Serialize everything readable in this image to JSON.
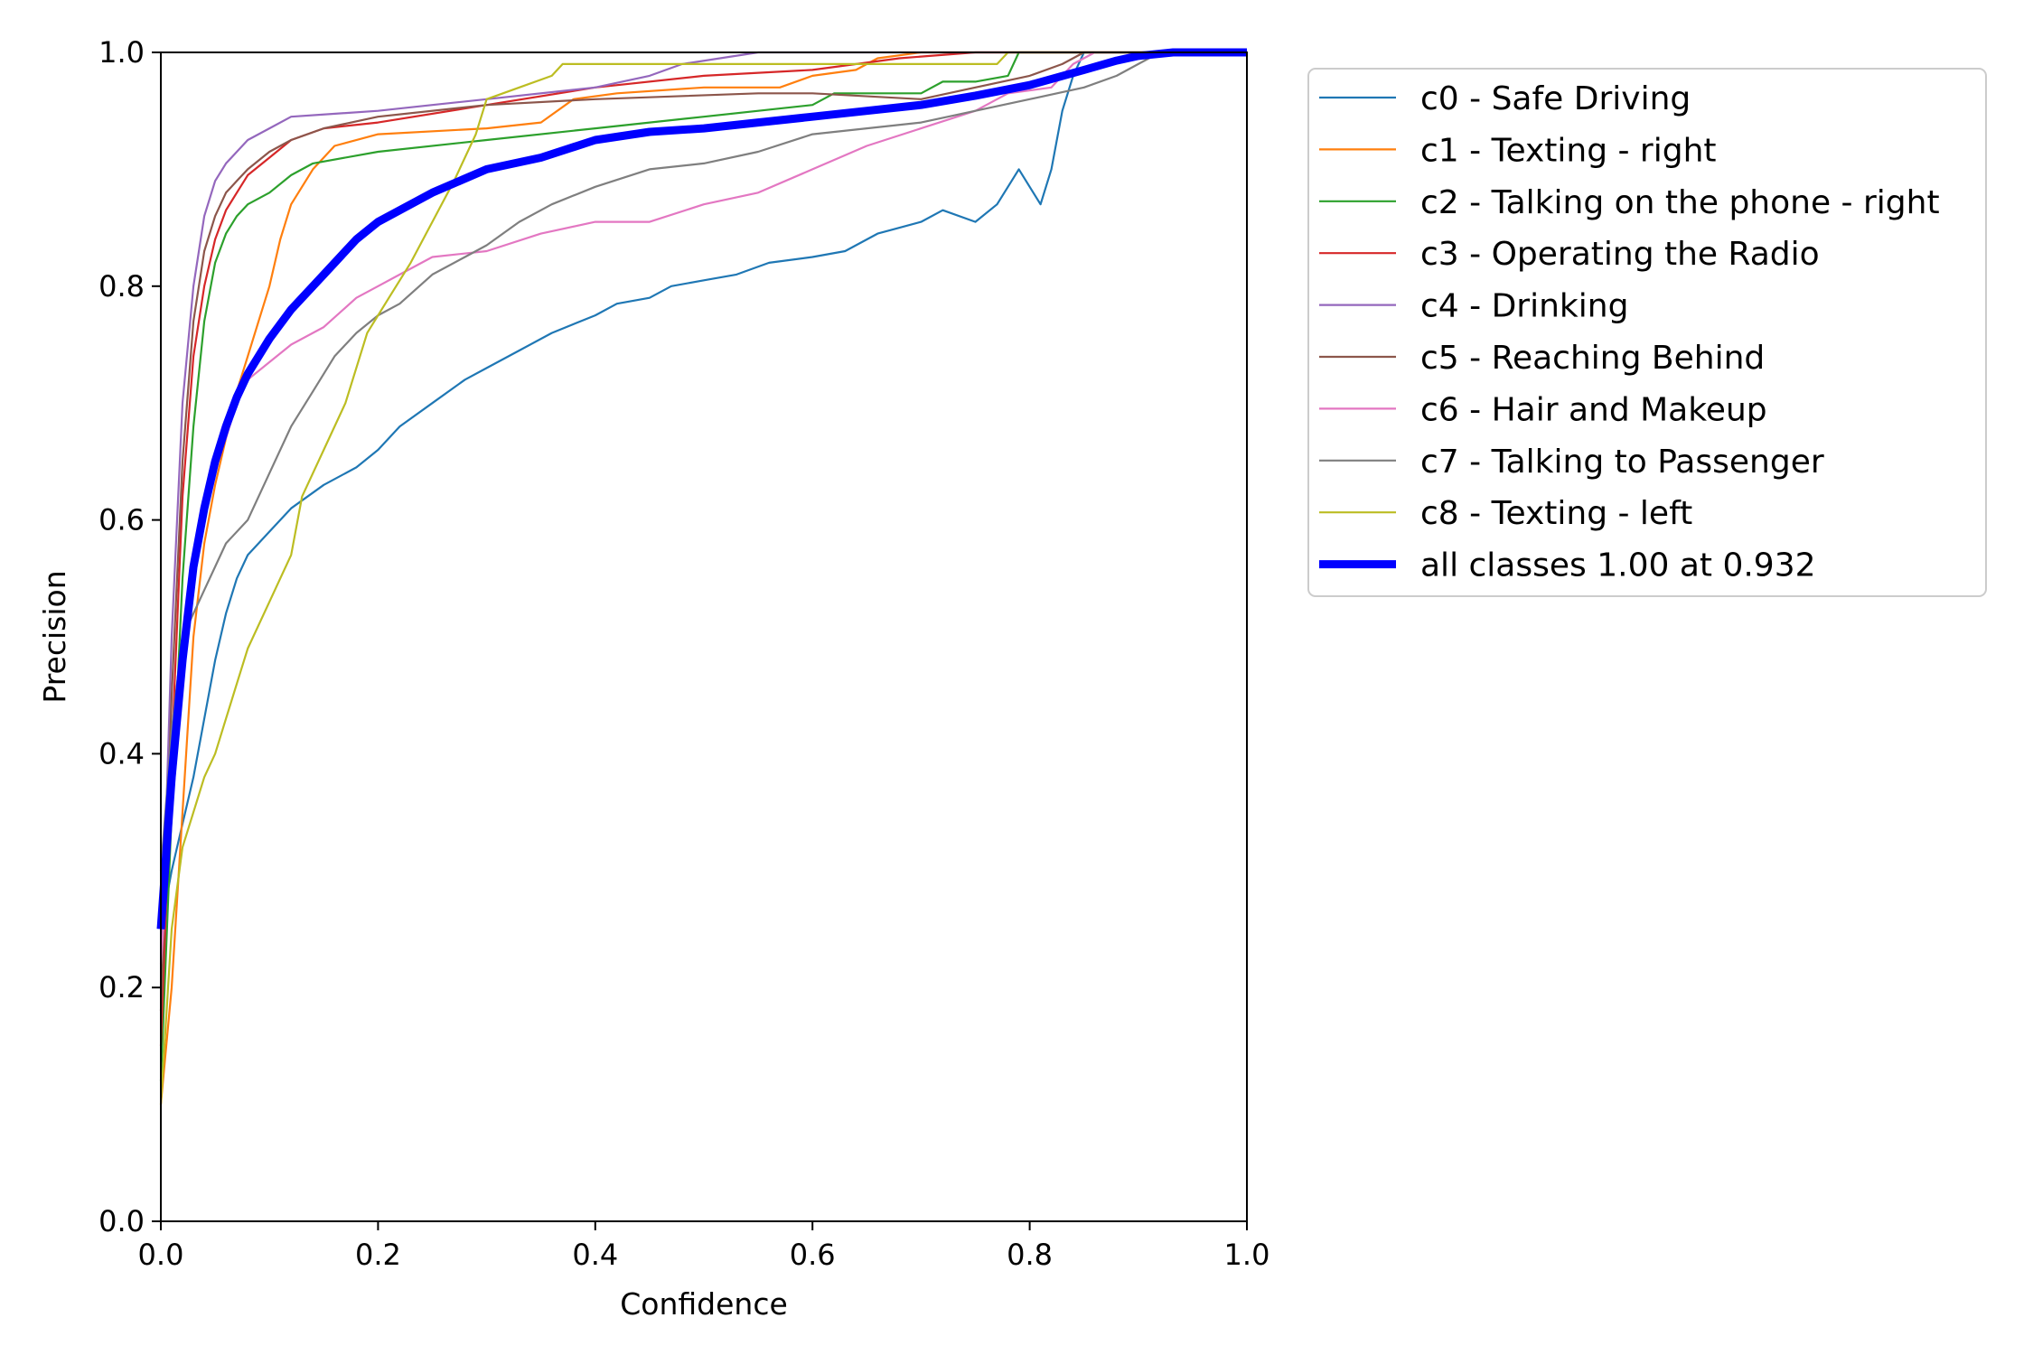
{
  "chart_data": {
    "type": "line",
    "title": "",
    "xlabel": "Confidence",
    "ylabel": "Precision",
    "xlim": [
      0,
      1
    ],
    "ylim": [
      0,
      1
    ],
    "xticks": [
      "0.0",
      "0.2",
      "0.4",
      "0.6",
      "0.8",
      "1.0"
    ],
    "yticks": [
      "0.0",
      "0.2",
      "0.4",
      "0.6",
      "0.8",
      "1.0"
    ],
    "grid": false,
    "legend_position": "outside-right-top",
    "series": [
      {
        "name": "c0 - Safe Driving",
        "color": "#1f77b4",
        "points": [
          [
            0.0,
            0.25
          ],
          [
            0.01,
            0.3
          ],
          [
            0.02,
            0.34
          ],
          [
            0.03,
            0.38
          ],
          [
            0.04,
            0.43
          ],
          [
            0.05,
            0.48
          ],
          [
            0.06,
            0.52
          ],
          [
            0.07,
            0.55
          ],
          [
            0.08,
            0.57
          ],
          [
            0.1,
            0.59
          ],
          [
            0.12,
            0.61
          ],
          [
            0.15,
            0.63
          ],
          [
            0.18,
            0.645
          ],
          [
            0.2,
            0.66
          ],
          [
            0.22,
            0.68
          ],
          [
            0.25,
            0.7
          ],
          [
            0.28,
            0.72
          ],
          [
            0.3,
            0.73
          ],
          [
            0.33,
            0.745
          ],
          [
            0.36,
            0.76
          ],
          [
            0.4,
            0.775
          ],
          [
            0.42,
            0.785
          ],
          [
            0.45,
            0.79
          ],
          [
            0.47,
            0.8
          ],
          [
            0.5,
            0.805
          ],
          [
            0.53,
            0.81
          ],
          [
            0.56,
            0.82
          ],
          [
            0.6,
            0.825
          ],
          [
            0.63,
            0.83
          ],
          [
            0.66,
            0.845
          ],
          [
            0.7,
            0.855
          ],
          [
            0.72,
            0.865
          ],
          [
            0.75,
            0.855
          ],
          [
            0.77,
            0.87
          ],
          [
            0.79,
            0.9
          ],
          [
            0.81,
            0.87
          ],
          [
            0.82,
            0.9
          ],
          [
            0.83,
            0.95
          ],
          [
            0.84,
            0.98
          ],
          [
            0.85,
            1.0
          ],
          [
            1.0,
            1.0
          ]
        ]
      },
      {
        "name": "c1 - Texting - right",
        "color": "#ff7f0e",
        "points": [
          [
            0.0,
            0.1
          ],
          [
            0.01,
            0.2
          ],
          [
            0.02,
            0.35
          ],
          [
            0.03,
            0.5
          ],
          [
            0.04,
            0.58
          ],
          [
            0.05,
            0.63
          ],
          [
            0.06,
            0.67
          ],
          [
            0.07,
            0.71
          ],
          [
            0.08,
            0.74
          ],
          [
            0.09,
            0.77
          ],
          [
            0.1,
            0.8
          ],
          [
            0.11,
            0.84
          ],
          [
            0.12,
            0.87
          ],
          [
            0.14,
            0.9
          ],
          [
            0.16,
            0.92
          ],
          [
            0.2,
            0.93
          ],
          [
            0.3,
            0.935
          ],
          [
            0.35,
            0.94
          ],
          [
            0.38,
            0.96
          ],
          [
            0.42,
            0.965
          ],
          [
            0.5,
            0.97
          ],
          [
            0.57,
            0.97
          ],
          [
            0.6,
            0.98
          ],
          [
            0.64,
            0.985
          ],
          [
            0.66,
            0.995
          ],
          [
            0.7,
            1.0
          ],
          [
            1.0,
            1.0
          ]
        ]
      },
      {
        "name": "c2 - Talking on the phone - right",
        "color": "#2ca02c",
        "points": [
          [
            0.0,
            0.12
          ],
          [
            0.01,
            0.35
          ],
          [
            0.02,
            0.55
          ],
          [
            0.03,
            0.68
          ],
          [
            0.04,
            0.77
          ],
          [
            0.05,
            0.82
          ],
          [
            0.06,
            0.845
          ],
          [
            0.07,
            0.86
          ],
          [
            0.08,
            0.87
          ],
          [
            0.1,
            0.88
          ],
          [
            0.12,
            0.895
          ],
          [
            0.14,
            0.905
          ],
          [
            0.2,
            0.915
          ],
          [
            0.3,
            0.925
          ],
          [
            0.4,
            0.935
          ],
          [
            0.5,
            0.945
          ],
          [
            0.6,
            0.955
          ],
          [
            0.62,
            0.965
          ],
          [
            0.7,
            0.965
          ],
          [
            0.72,
            0.975
          ],
          [
            0.75,
            0.975
          ],
          [
            0.78,
            0.98
          ],
          [
            0.79,
            1.0
          ],
          [
            1.0,
            1.0
          ]
        ]
      },
      {
        "name": "c3 - Operating the Radio",
        "color": "#d62728",
        "points": [
          [
            0.0,
            0.15
          ],
          [
            0.01,
            0.4
          ],
          [
            0.02,
            0.62
          ],
          [
            0.03,
            0.74
          ],
          [
            0.04,
            0.8
          ],
          [
            0.05,
            0.84
          ],
          [
            0.06,
            0.865
          ],
          [
            0.07,
            0.88
          ],
          [
            0.08,
            0.895
          ],
          [
            0.1,
            0.91
          ],
          [
            0.12,
            0.925
          ],
          [
            0.15,
            0.935
          ],
          [
            0.2,
            0.94
          ],
          [
            0.3,
            0.955
          ],
          [
            0.4,
            0.97
          ],
          [
            0.5,
            0.98
          ],
          [
            0.6,
            0.985
          ],
          [
            0.68,
            0.995
          ],
          [
            0.75,
            1.0
          ],
          [
            1.0,
            1.0
          ]
        ]
      },
      {
        "name": "c4 - Drinking",
        "color": "#9467bd",
        "points": [
          [
            0.0,
            0.2
          ],
          [
            0.01,
            0.5
          ],
          [
            0.02,
            0.7
          ],
          [
            0.03,
            0.8
          ],
          [
            0.04,
            0.86
          ],
          [
            0.05,
            0.89
          ],
          [
            0.06,
            0.905
          ],
          [
            0.07,
            0.915
          ],
          [
            0.08,
            0.925
          ],
          [
            0.1,
            0.935
          ],
          [
            0.12,
            0.945
          ],
          [
            0.2,
            0.95
          ],
          [
            0.25,
            0.955
          ],
          [
            0.3,
            0.96
          ],
          [
            0.4,
            0.97
          ],
          [
            0.45,
            0.98
          ],
          [
            0.48,
            0.99
          ],
          [
            0.55,
            1.0
          ],
          [
            1.0,
            1.0
          ]
        ]
      },
      {
        "name": "c5 - Reaching Behind",
        "color": "#8c564b",
        "points": [
          [
            0.0,
            0.18
          ],
          [
            0.01,
            0.45
          ],
          [
            0.02,
            0.65
          ],
          [
            0.03,
            0.77
          ],
          [
            0.04,
            0.83
          ],
          [
            0.05,
            0.86
          ],
          [
            0.06,
            0.88
          ],
          [
            0.07,
            0.89
          ],
          [
            0.08,
            0.9
          ],
          [
            0.1,
            0.915
          ],
          [
            0.12,
            0.925
          ],
          [
            0.15,
            0.935
          ],
          [
            0.2,
            0.945
          ],
          [
            0.3,
            0.955
          ],
          [
            0.4,
            0.96
          ],
          [
            0.55,
            0.965
          ],
          [
            0.6,
            0.965
          ],
          [
            0.7,
            0.96
          ],
          [
            0.75,
            0.97
          ],
          [
            0.8,
            0.98
          ],
          [
            0.83,
            0.99
          ],
          [
            0.85,
            1.0
          ],
          [
            1.0,
            1.0
          ]
        ]
      },
      {
        "name": "c6 - Hair and Makeup",
        "color": "#e377c2",
        "points": [
          [
            0.0,
            0.22
          ],
          [
            0.01,
            0.35
          ],
          [
            0.02,
            0.46
          ],
          [
            0.03,
            0.55
          ],
          [
            0.04,
            0.61
          ],
          [
            0.05,
            0.65
          ],
          [
            0.06,
            0.67
          ],
          [
            0.07,
            0.7
          ],
          [
            0.08,
            0.72
          ],
          [
            0.1,
            0.735
          ],
          [
            0.12,
            0.75
          ],
          [
            0.15,
            0.765
          ],
          [
            0.18,
            0.79
          ],
          [
            0.2,
            0.8
          ],
          [
            0.22,
            0.81
          ],
          [
            0.25,
            0.825
          ],
          [
            0.3,
            0.83
          ],
          [
            0.35,
            0.845
          ],
          [
            0.4,
            0.855
          ],
          [
            0.45,
            0.855
          ],
          [
            0.5,
            0.87
          ],
          [
            0.55,
            0.88
          ],
          [
            0.6,
            0.9
          ],
          [
            0.65,
            0.92
          ],
          [
            0.7,
            0.935
          ],
          [
            0.75,
            0.95
          ],
          [
            0.78,
            0.965
          ],
          [
            0.82,
            0.97
          ],
          [
            0.84,
            0.99
          ],
          [
            0.86,
            1.0
          ],
          [
            1.0,
            1.0
          ]
        ]
      },
      {
        "name": "c7 - Talking to Passenger",
        "color": "#7f7f7f",
        "points": [
          [
            0.0,
            0.3
          ],
          [
            0.01,
            0.42
          ],
          [
            0.02,
            0.5
          ],
          [
            0.03,
            0.52
          ],
          [
            0.04,
            0.54
          ],
          [
            0.05,
            0.56
          ],
          [
            0.06,
            0.58
          ],
          [
            0.08,
            0.6
          ],
          [
            0.1,
            0.64
          ],
          [
            0.12,
            0.68
          ],
          [
            0.14,
            0.71
          ],
          [
            0.16,
            0.74
          ],
          [
            0.18,
            0.76
          ],
          [
            0.2,
            0.775
          ],
          [
            0.22,
            0.785
          ],
          [
            0.25,
            0.81
          ],
          [
            0.28,
            0.825
          ],
          [
            0.3,
            0.835
          ],
          [
            0.33,
            0.855
          ],
          [
            0.36,
            0.87
          ],
          [
            0.4,
            0.885
          ],
          [
            0.45,
            0.9
          ],
          [
            0.5,
            0.905
          ],
          [
            0.55,
            0.915
          ],
          [
            0.6,
            0.93
          ],
          [
            0.65,
            0.935
          ],
          [
            0.7,
            0.94
          ],
          [
            0.75,
            0.95
          ],
          [
            0.8,
            0.96
          ],
          [
            0.85,
            0.97
          ],
          [
            0.88,
            0.98
          ],
          [
            0.9,
            0.99
          ],
          [
            0.92,
            1.0
          ],
          [
            1.0,
            1.0
          ]
        ]
      },
      {
        "name": "c8 - Texting - left",
        "color": "#bcbd22",
        "points": [
          [
            0.0,
            0.1
          ],
          [
            0.01,
            0.25
          ],
          [
            0.02,
            0.32
          ],
          [
            0.03,
            0.35
          ],
          [
            0.04,
            0.38
          ],
          [
            0.05,
            0.4
          ],
          [
            0.06,
            0.43
          ],
          [
            0.07,
            0.46
          ],
          [
            0.08,
            0.49
          ],
          [
            0.1,
            0.53
          ],
          [
            0.12,
            0.57
          ],
          [
            0.13,
            0.62
          ],
          [
            0.15,
            0.66
          ],
          [
            0.17,
            0.7
          ],
          [
            0.19,
            0.76
          ],
          [
            0.21,
            0.79
          ],
          [
            0.23,
            0.82
          ],
          [
            0.25,
            0.855
          ],
          [
            0.27,
            0.89
          ],
          [
            0.29,
            0.93
          ],
          [
            0.3,
            0.96
          ],
          [
            0.33,
            0.97
          ],
          [
            0.36,
            0.98
          ],
          [
            0.37,
            0.99
          ],
          [
            0.5,
            0.99
          ],
          [
            0.7,
            0.99
          ],
          [
            0.77,
            0.99
          ],
          [
            0.78,
            1.0
          ],
          [
            1.0,
            1.0
          ]
        ]
      },
      {
        "name": "all classes 1.00 at 0.932",
        "color": "#0000ff",
        "thick": true,
        "points": [
          [
            0.0,
            0.25
          ],
          [
            0.01,
            0.38
          ],
          [
            0.02,
            0.48
          ],
          [
            0.03,
            0.56
          ],
          [
            0.04,
            0.61
          ],
          [
            0.05,
            0.65
          ],
          [
            0.06,
            0.68
          ],
          [
            0.07,
            0.705
          ],
          [
            0.08,
            0.725
          ],
          [
            0.1,
            0.755
          ],
          [
            0.12,
            0.78
          ],
          [
            0.15,
            0.81
          ],
          [
            0.18,
            0.84
          ],
          [
            0.2,
            0.855
          ],
          [
            0.25,
            0.88
          ],
          [
            0.3,
            0.9
          ],
          [
            0.35,
            0.91
          ],
          [
            0.4,
            0.925
          ],
          [
            0.45,
            0.932
          ],
          [
            0.5,
            0.935
          ],
          [
            0.55,
            0.94
          ],
          [
            0.6,
            0.945
          ],
          [
            0.65,
            0.95
          ],
          [
            0.7,
            0.955
          ],
          [
            0.75,
            0.963
          ],
          [
            0.8,
            0.972
          ],
          [
            0.85,
            0.985
          ],
          [
            0.88,
            0.993
          ],
          [
            0.9,
            0.997
          ],
          [
            0.932,
            1.0
          ],
          [
            1.0,
            1.0
          ]
        ]
      }
    ]
  }
}
